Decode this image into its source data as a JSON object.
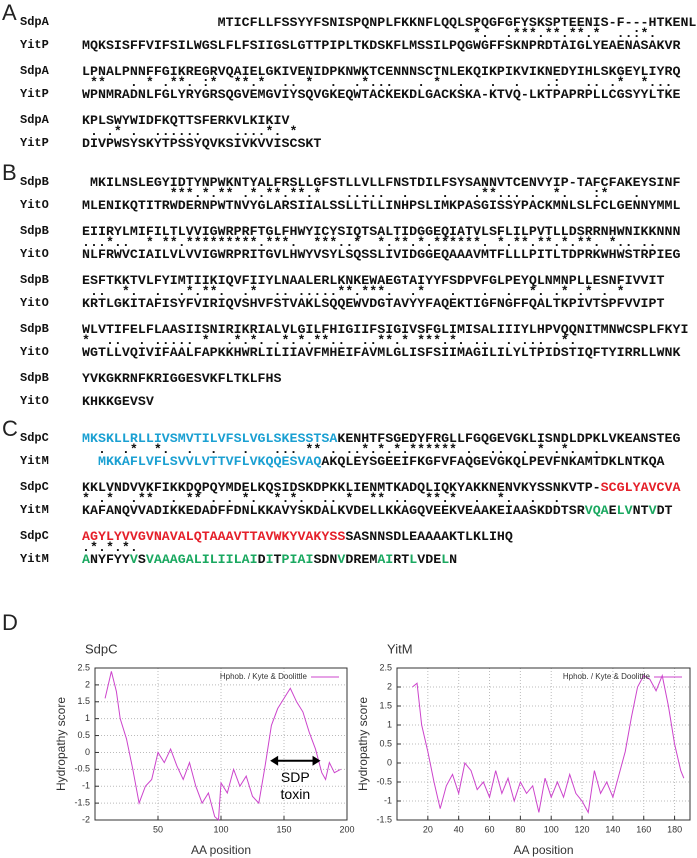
{
  "panels": [
    {
      "label": "A",
      "blocks": [
        {
          "top": {
            "name": "SdpA",
            "segments": [
              {
                "text": "                 MTICFLLFSSYYFSNISPQNPLFKKNFLQQLSPQGFGFYSKSPTEENIS-F---HTKENLK"
              }
            ]
          },
          "cons": "                                                 *.  .***.**.**.*  ..:*.",
          "bottom": {
            "name": "YitP",
            "segments": [
              {
                "text": "MQKSISFFVIFSILWGSLFLFSIIGSLGTTPIPLTKDSKFLMSSILPQGWGFFSKNPRDTAIGLYEAENASAKVR"
              }
            ]
          }
        },
        {
          "top": {
            "name": "SdpA",
            "segments": [
              {
                "text": "LPNALPNNFFGIKREGRVQAIELGKIVENIDPKNWKTCENNNSCTNLEKQIKPIKVIKNEDYIHLSKGEYLIYRQ"
              }
            ]
          },
          "cons": " **   . * .**. :*  **.*  .. *  .  .*...   . *  .   .  .   .:   .. .*  *...",
          "bottom": {
            "name": "YitP",
            "segments": [
              {
                "text": "WPNMRADNLFGLYRYGRSQGVEMGVIYSQVGKEQWTACKEKDLGACKSKA-KTVQ-LKTPAPRPLLCGSYYLTKE"
              }
            ]
          }
        },
        {
          "top": {
            "name": "SdpA",
            "segments": [
              {
                "text": "KPLSWYWIDFKQTTSFERKVLKIKIV"
              }
            ]
          },
          "cons": " . .* .  ......    ....*. *",
          "bottom": {
            "name": "YitP",
            "segments": [
              {
                "text": "DIVPWSYSKYTPSSYQVKSIVKVVISCSKT"
              }
            ]
          }
        }
      ]
    },
    {
      "label": "B",
      "blocks": [
        {
          "top": {
            "name": "SdpB",
            "segments": [
              {
                "text": " MKILNSLEGYIDTYNPWKNTYALFRSLLGFSTLLVLLFNSTDILFSYSANNVTCENVYIP-TAFCFAKEYSINF"
              }
            ]
          },
          "cons": "           ***.*.** .*.**.**.*   .....  .    .   .**... .  *.   :*   .",
          "bottom": {
            "name": "YitO",
            "segments": [
              {
                "text": "MLENIKQTITRWDERNPWTNVYGLARSIIALSSLLTLLINHPSLIMKPASGISSYPACKMNLSLFCLGENNYMML"
              }
            ]
          }
        },
        {
          "top": {
            "name": "SdpB",
            "segments": [
              {
                "text": "EIIRYLMIFILTLVVIGWRPRFTGLFHWYICYSIQTSALTIDGGEQIATVLSFLILPVTLLDSRRNHWNIKKNNN"
              }
            ]
          },
          "cons": "...*..  * **.*********.***.  ***..*  *.**.*.******. *.**.**.*.**. *.. ..",
          "bottom": {
            "name": "YitO",
            "segments": [
              {
                "text": "NLFRWVCIAILVLVVIGWRPRITGVLHWYVSYLSQSSLIVIDGGEQAAAVMTFLLLPITLTDPRKWHWSTRPIEG"
              }
            ]
          }
        },
        {
          "top": {
            "name": "SdpB",
            "segments": [
              {
                "text": "ESFTKKTVLFYIMTIIKIQVFIIYLNAALERLKNKEWAEGTAIYYFSDPVFGLPEYQLNMNPLLESNFIVVIT"
              }
            ]
          },
          "cons": " ..  *.  .  .*.**.  .*  .. .....**.***.  .*   .   .  .  *. .* .* . *",
          "bottom": {
            "name": "YitO",
            "segments": [
              {
                "text": "KRTLGKITAFISYFVIRIQVSHVFSTVAKLSQQEWVDGTAVYYFAQEKTIGFNGFFQALTKPIVTSPFVVIPT"
              }
            ]
          }
        },
        {
          "top": {
            "name": "SdpB",
            "segments": [
              {
                "text": "WLVTIFELFLAASIISNIRIKRIALVLGILFHIGIIFSIGIVSFGLIMISALIIIYLHPVQQNITMNWCSPLFKYI"
              }
            ]
          },
          "cons": "*  ..  . ..... *  .*.*. .*.*.**..  ..**.* ***.*. ..  . ... .*.",
          "bottom": {
            "name": "YitO",
            "segments": [
              {
                "text": "WGTLLVQIVIFAALFAPKKHWRLILIIAVFMHEIFAVMLGLISFSIIMAGILILYLTPIDSTIQFTYIRRLLWNK"
              }
            ]
          }
        },
        {
          "top": {
            "name": "SdpB",
            "segments": [
              {
                "text": "YVKGKRNFKRIGGESVKFLTKLFHS"
              }
            ]
          },
          "bottom": {
            "name": "YitO",
            "segments": [
              {
                "text": "KHKKGEVSV"
              }
            ]
          }
        }
      ]
    },
    {
      "label": "C",
      "blocks": [
        {
          "top": {
            "name": "SdpC",
            "segments": [
              {
                "text": "MKSKLLRLLIVSMVTILVFSLVGLSKESSTSA",
                "color": "#1ba0d2"
              },
              {
                "text": "KENHTFSGEDYFRGLLFGQGEVGKLISNDLDPKLVKEANSTEG"
              }
            ]
          },
          "cons": "  .  .*  *.  .  .   .   ... ** . ..*.*.*.****** .  ..  . * .*.  .",
          "bottom": {
            "name": "YitM",
            "segments": [
              {
                "text": "  "
              },
              {
                "text": "MKKAFLVFLSVVLVTTVFLVKQQESVAQ",
                "color": "#1ba0d2"
              },
              {
                "text": "AKQLEYSGEEIFKGFVFAQGEVGKQLPEVFNKAMTDKLNTKQA"
              }
            ]
          }
        },
        {
          "top": {
            "name": "SdpC",
            "segments": [
              {
                "text": "KKLVNDVVKFIKKDQPQYMDELKQSIDSKDPKKLIENMTKADQLIQKYAKKNENVKYSSNKVTP-"
              },
              {
                "text": "SCGLYAVCVA",
                "color": "#e5202a"
              }
            ]
          },
          "cons": "* .*  .**  . ** . . *.  *.*.  .. *  ** ..  **.*  .  *.  .  .",
          "bottom": {
            "name": "YitM",
            "segments": [
              {
                "text": "KAFANQVVADIKKEDADFFDNLKKAVYSKDALKVDELLKKAGQVEEKVEAAKEIAASKDDTSR"
              },
              {
                "text": "VQA",
                "color": "#1aa860"
              },
              {
                "text": "E"
              },
              {
                "text": "LV",
                "color": "#1aa860"
              },
              {
                "text": "NT"
              },
              {
                "text": "V",
                "color": "#1aa860"
              },
              {
                "text": "DT"
              }
            ]
          }
        },
        {
          "top": {
            "name": "SdpC",
            "segments": [
              {
                "text": "AGYLYVVGVNAVALQTAAAVTTAVWKYVAKYSS",
                "color": "#e5202a"
              },
              {
                "text": "SASNNSDLEAAAAKTLKLIHQ"
              }
            ]
          },
          "cons": ".*.*.*.",
          "bottom": {
            "name": "YitM",
            "segments": [
              {
                "text": "A",
                "color": "#1aa860"
              },
              {
                "text": "NYFYY"
              },
              {
                "text": "V",
                "color": "#1aa860"
              },
              {
                "text": "S"
              },
              {
                "text": "VAAAGALILIILAI",
                "color": "#1aa860"
              },
              {
                "text": "D"
              },
              {
                "text": "I",
                "color": "#1aa860"
              },
              {
                "text": "T"
              },
              {
                "text": "PIAI",
                "color": "#1aa860"
              },
              {
                "text": "SDN"
              },
              {
                "text": "V",
                "color": "#1aa860"
              },
              {
                "text": "DREM"
              },
              {
                "text": "AI",
                "color": "#1aa860"
              },
              {
                "text": "RT"
              },
              {
                "text": "L",
                "color": "#1aa860"
              },
              {
                "text": "VDE"
              },
              {
                "text": "L",
                "color": "#1aa860"
              },
              {
                "text": "N"
              }
            ]
          }
        }
      ]
    },
    {
      "label": "D"
    }
  ],
  "chart_data": [
    {
      "type": "line",
      "title": "SdpC",
      "xlabel": "AA position",
      "ylabel": "Hydropathy score",
      "x": [
        8,
        13,
        17,
        20,
        25,
        30,
        35,
        40,
        45,
        50,
        55,
        60,
        65,
        70,
        75,
        80,
        85,
        90,
        95,
        98,
        100,
        105,
        110,
        115,
        120,
        125,
        130,
        135,
        140,
        145,
        150,
        155,
        160,
        165,
        170,
        175,
        180,
        183,
        186,
        190,
        195
      ],
      "series": [
        {
          "name": "Hphob. / Kyte & Doolittle",
          "color": "#cc44cc",
          "values": [
            1.6,
            2.4,
            1.8,
            1.0,
            0.4,
            -0.5,
            -1.5,
            -1.0,
            -0.8,
            0,
            -0.3,
            0.1,
            -0.4,
            -0.8,
            -0.3,
            -1.0,
            -1.5,
            -1.2,
            -1.9,
            -2.0,
            -0.9,
            -1.2,
            -0.5,
            -1.0,
            -0.7,
            -1.3,
            -1.5,
            -0.4,
            0.8,
            1.3,
            1.6,
            1.9,
            1.5,
            1.2,
            0.6,
            0.1,
            -0.6,
            -0.8,
            -0.3,
            -0.6,
            -0.5
          ]
        }
      ],
      "xlim": [
        0,
        200
      ],
      "ylim": [
        -2,
        2.5
      ],
      "xticks": [
        50,
        100,
        150,
        200
      ],
      "yticks": [
        -2,
        -1.5,
        -1,
        -0.5,
        0,
        0.5,
        1,
        1.5,
        2,
        2.5
      ],
      "grid": true,
      "legend": "top-right",
      "annotation": "SDP toxin"
    },
    {
      "type": "line",
      "title": "YitM",
      "xlabel": "AA position",
      "ylabel": "Hydropathy score",
      "x": [
        10,
        13,
        16,
        20,
        24,
        28,
        32,
        36,
        40,
        44,
        48,
        52,
        56,
        60,
        64,
        68,
        72,
        76,
        80,
        84,
        88,
        92,
        96,
        100,
        104,
        108,
        112,
        116,
        120,
        124,
        128,
        132,
        136,
        140,
        144,
        148,
        152,
        156,
        160,
        164,
        168,
        172,
        176,
        180,
        184,
        186
      ],
      "series": [
        {
          "name": "Hphob. / Kyte & Doolittle",
          "color": "#cc44cc",
          "values": [
            2.0,
            2.1,
            1.0,
            0.3,
            -0.5,
            -1.2,
            -0.6,
            -0.3,
            -0.8,
            0,
            -0.2,
            -0.7,
            -0.5,
            -0.9,
            -0.2,
            -0.8,
            -0.4,
            -1.0,
            -0.5,
            -0.8,
            -0.6,
            -1.3,
            -0.4,
            -0.9,
            -0.5,
            -0.9,
            -0.3,
            -0.8,
            -1.0,
            -1.3,
            -0.2,
            -0.8,
            -0.5,
            -0.9,
            -0.3,
            0.3,
            1.2,
            2.0,
            2.3,
            2.2,
            1.9,
            2.3,
            1.5,
            0.5,
            -0.2,
            -0.4
          ]
        }
      ],
      "xlim": [
        0,
        190
      ],
      "ylim": [
        -1.5,
        2.5
      ],
      "xticks": [
        20,
        40,
        60,
        80,
        100,
        120,
        140,
        160,
        180
      ],
      "yticks": [
        -1.5,
        -1,
        -0.5,
        0,
        0.5,
        1,
        1.5,
        2,
        2.5
      ],
      "grid": true,
      "legend": "top-right"
    }
  ]
}
